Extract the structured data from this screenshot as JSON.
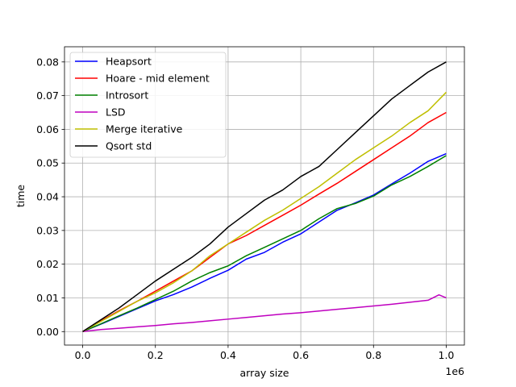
{
  "chart_data": {
    "type": "line",
    "xlabel": "array size",
    "ylabel": "time",
    "x_offset_label": "1e6",
    "xlim": [
      -50000,
      1050000
    ],
    "ylim": [
      -0.004,
      0.0845
    ],
    "x_ticks": [
      0,
      200000,
      400000,
      600000,
      800000,
      1000000
    ],
    "x_tick_labels": [
      "0.0",
      "0.2",
      "0.4",
      "0.6",
      "0.8",
      "1.0"
    ],
    "y_ticks": [
      0,
      0.01,
      0.02,
      0.03,
      0.04,
      0.05,
      0.06,
      0.07,
      0.08
    ],
    "y_tick_labels": [
      "0.00",
      "0.01",
      "0.02",
      "0.03",
      "0.04",
      "0.05",
      "0.06",
      "0.07",
      "0.08"
    ],
    "grid": true,
    "legend_position": "top-left",
    "series": [
      {
        "name": "Heapsort",
        "color": "#0000ff",
        "x": [
          0,
          50000,
          100000,
          150000,
          200000,
          250000,
          300000,
          350000,
          400000,
          450000,
          500000,
          550000,
          600000,
          650000,
          700000,
          750000,
          800000,
          850000,
          900000,
          950000,
          1000000
        ],
        "y": [
          0,
          0.0022,
          0.0045,
          0.0068,
          0.0091,
          0.011,
          0.0132,
          0.0158,
          0.0182,
          0.0215,
          0.0235,
          0.0265,
          0.029,
          0.0325,
          0.036,
          0.0382,
          0.0405,
          0.0438,
          0.047,
          0.0505,
          0.0528
        ]
      },
      {
        "name": "Hoare - mid element",
        "color": "#ff0000",
        "x": [
          0,
          50000,
          100000,
          150000,
          200000,
          250000,
          300000,
          350000,
          400000,
          450000,
          500000,
          550000,
          600000,
          650000,
          700000,
          750000,
          800000,
          850000,
          900000,
          950000,
          1000000
        ],
        "y": [
          0,
          0.0032,
          0.0062,
          0.009,
          0.012,
          0.015,
          0.018,
          0.022,
          0.026,
          0.0285,
          0.0315,
          0.0345,
          0.0375,
          0.0408,
          0.044,
          0.0475,
          0.051,
          0.0545,
          0.058,
          0.062,
          0.065
        ]
      },
      {
        "name": "Introsort",
        "color": "#008000",
        "x": [
          0,
          50000,
          100000,
          150000,
          200000,
          250000,
          300000,
          350000,
          400000,
          450000,
          500000,
          550000,
          600000,
          650000,
          700000,
          750000,
          800000,
          850000,
          900000,
          950000,
          1000000
        ],
        "y": [
          0,
          0.0023,
          0.0047,
          0.007,
          0.0095,
          0.012,
          0.015,
          0.0175,
          0.0195,
          0.0225,
          0.025,
          0.0275,
          0.03,
          0.0335,
          0.0365,
          0.038,
          0.0402,
          0.0435,
          0.046,
          0.049,
          0.0522
        ]
      },
      {
        "name": "LSD",
        "color": "#bf00bf",
        "x": [
          0,
          50000,
          100000,
          150000,
          200000,
          250000,
          300000,
          350000,
          400000,
          450000,
          500000,
          550000,
          600000,
          650000,
          700000,
          750000,
          800000,
          850000,
          900000,
          950000,
          980000,
          1000000
        ],
        "y": [
          0,
          0.0006,
          0.001,
          0.0014,
          0.0018,
          0.0023,
          0.0027,
          0.0032,
          0.0037,
          0.0042,
          0.0047,
          0.0052,
          0.0056,
          0.0061,
          0.0066,
          0.0071,
          0.0076,
          0.0081,
          0.0087,
          0.0093,
          0.0109,
          0.01
        ]
      },
      {
        "name": "Merge iterative",
        "color": "#bfbf00",
        "x": [
          0,
          50000,
          100000,
          150000,
          200000,
          250000,
          300000,
          350000,
          400000,
          450000,
          500000,
          550000,
          600000,
          650000,
          700000,
          750000,
          800000,
          850000,
          900000,
          950000,
          1000000
        ],
        "y": [
          0,
          0.003,
          0.006,
          0.009,
          0.0115,
          0.0145,
          0.018,
          0.0225,
          0.026,
          0.0295,
          0.033,
          0.036,
          0.0395,
          0.043,
          0.047,
          0.051,
          0.0545,
          0.058,
          0.062,
          0.0655,
          0.071
        ]
      },
      {
        "name": "Qsort std",
        "color": "#000000",
        "x": [
          0,
          50000,
          100000,
          150000,
          200000,
          250000,
          300000,
          350000,
          400000,
          450000,
          500000,
          550000,
          600000,
          650000,
          700000,
          750000,
          800000,
          850000,
          900000,
          950000,
          1000000
        ],
        "y": [
          0,
          0.0035,
          0.007,
          0.011,
          0.015,
          0.0185,
          0.022,
          0.026,
          0.031,
          0.035,
          0.039,
          0.042,
          0.046,
          0.049,
          0.054,
          0.059,
          0.064,
          0.069,
          0.073,
          0.077,
          0.08
        ]
      }
    ]
  }
}
